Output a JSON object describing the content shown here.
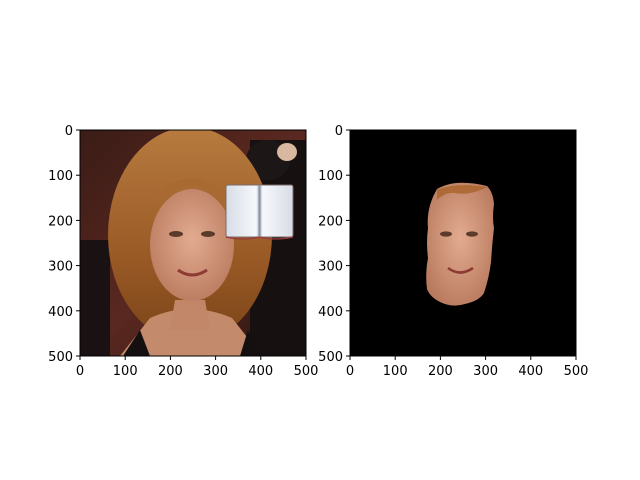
{
  "chart_data": [
    {
      "type": "image",
      "title": "",
      "xlabel": "",
      "ylabel": "",
      "xlim": [
        0,
        500
      ],
      "ylim": [
        500,
        0
      ],
      "x_ticks": [
        0,
        100,
        200,
        300,
        400,
        500
      ],
      "y_ticks": [
        0,
        100,
        200,
        300,
        400,
        500
      ],
      "x_tick_labels": [
        "0",
        "100",
        "200",
        "300",
        "400",
        "500"
      ],
      "y_tick_labels": [
        "0",
        "100",
        "200",
        "300",
        "400",
        "500"
      ],
      "content": "portrait photo with an open book occluding the upper-right area",
      "grid": false
    },
    {
      "type": "image",
      "title": "",
      "xlabel": "",
      "ylabel": "",
      "xlim": [
        0,
        500
      ],
      "ylim": [
        500,
        0
      ],
      "x_ticks": [
        0,
        100,
        200,
        300,
        400,
        500
      ],
      "y_ticks": [
        0,
        100,
        200,
        300,
        400,
        500
      ],
      "x_tick_labels": [
        "0",
        "100",
        "200",
        "300",
        "400",
        "500"
      ],
      "y_tick_labels": [
        "0",
        "100",
        "200",
        "300",
        "400",
        "500"
      ],
      "content": "segmented face region on a black background",
      "grid": false,
      "background_color": "#000000"
    }
  ],
  "colors": {
    "axes_frame": "#000000",
    "mask_background": "#000000",
    "skin": "#c98f73",
    "hair": "#a8632b",
    "book_page": "#eef1f6"
  }
}
